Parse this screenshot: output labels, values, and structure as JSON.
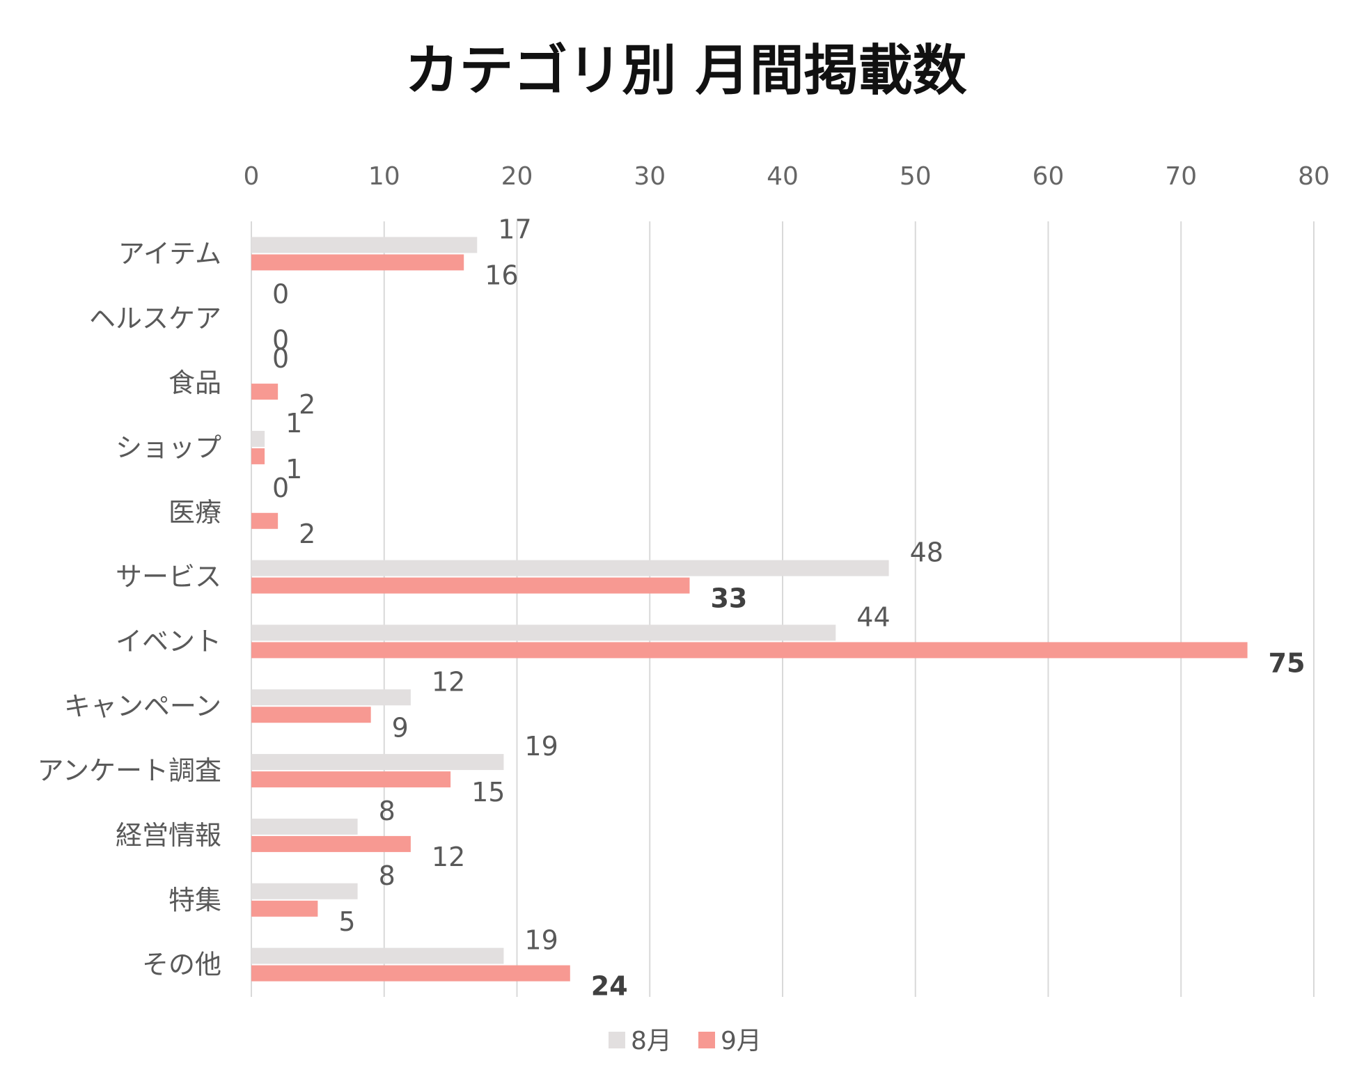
{
  "chart_data": {
    "type": "bar",
    "orientation": "horizontal",
    "title": "カテゴリ別 月間掲載数",
    "xlabel": "",
    "ylabel": "",
    "xlim": [
      0,
      80
    ],
    "ticks": [
      "0",
      "10",
      "20",
      "30",
      "40",
      "50",
      "60",
      "70",
      "80"
    ],
    "tick_values": [
      0,
      10,
      20,
      30,
      40,
      50,
      60,
      70,
      80
    ],
    "categories": [
      "アイテム",
      "ヘルスケア",
      "食品",
      "ショップ",
      "医療",
      "サービス",
      "イベント",
      "キャンペーン",
      "アンケート調査",
      "経営情報",
      "特集",
      "その他"
    ],
    "series": [
      {
        "name": "8月",
        "color": "#e2dfdf",
        "values": [
          17,
          0,
          0,
          1,
          0,
          48,
          44,
          12,
          19,
          8,
          8,
          19
        ]
      },
      {
        "name": "9月",
        "color": "#f79992",
        "values": [
          16,
          0,
          2,
          1,
          2,
          33,
          75,
          9,
          15,
          12,
          5,
          24
        ]
      }
    ],
    "bold_labels": {
      "9月": [
        33,
        75,
        24
      ]
    },
    "grid": true,
    "axis_position": "top",
    "legend_position": "bottom"
  }
}
